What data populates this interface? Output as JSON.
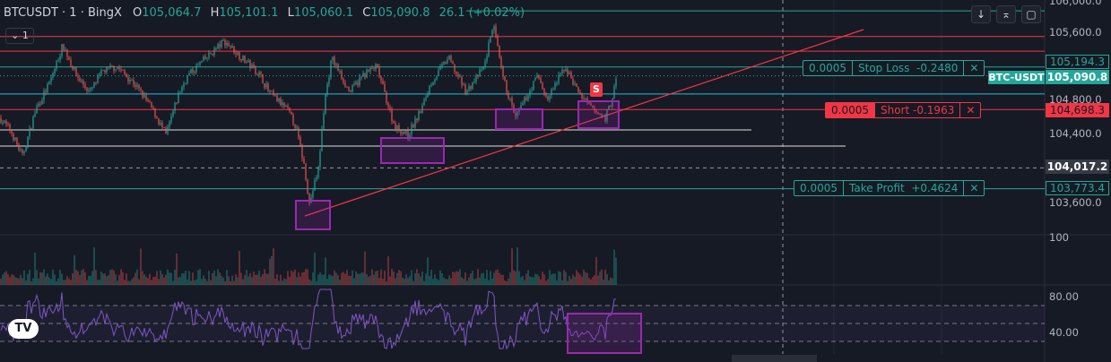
{
  "header": {
    "symbol": "BTCUSDT · 1 · BingX",
    "o_label": "O",
    "o": "105,064.7",
    "h_label": "H",
    "h": "105,101.1",
    "l_label": "L",
    "l": "105,060.1",
    "c_label": "C",
    "c": "105,090.8",
    "change": "26.1 (+0.02%)",
    "interval_badge": "⌄ 1"
  },
  "toolbar": {
    "down": "↓",
    "collapse": "⌅",
    "fullscreen": "▢"
  },
  "orders": {
    "stop_loss": {
      "qty": "0.0005",
      "label": "Stop Loss  -0.2480",
      "close": "✕",
      "price": "105,194.3"
    },
    "short": {
      "qty": "0.0005",
      "label": "Short -0.1963",
      "close": "✕",
      "price": "104,698.3"
    },
    "take_profit": {
      "qty": "0.0005",
      "label": "Take Profit  +0.4624",
      "close": "✕",
      "price": "103,773.4"
    }
  },
  "price_axis": {
    "ticks": [
      "106,000.0",
      "105,600.0",
      "104,800.0",
      "104,400.0",
      "103,600.0"
    ],
    "current_symbol": "BTC-USDT",
    "current_price": "105,090.8",
    "crosshair_price": "104,017.2"
  },
  "volume_axis": {
    "tick": "100"
  },
  "rsi_axis": {
    "ticks": [
      "80.00",
      "40.00"
    ]
  },
  "marker": {
    "label": "S",
    "color": "#f23645"
  },
  "logo": "TV",
  "colors": {
    "up": "#26a69a",
    "down": "#ef5350",
    "rsi": "#7e57c2",
    "box": "#9c27b0"
  },
  "chart_data": {
    "type": "candlestick",
    "title": "BTCUSDT · 1 · BingX",
    "ylim": [
      103400,
      106000
    ],
    "price_path": [
      [
        0,
        104600
      ],
      [
        12,
        104450
      ],
      [
        25,
        104150
      ],
      [
        40,
        104700
      ],
      [
        55,
        105000
      ],
      [
        70,
        105450
      ],
      [
        85,
        105100
      ],
      [
        100,
        104900
      ],
      [
        115,
        105150
      ],
      [
        130,
        105200
      ],
      [
        150,
        105000
      ],
      [
        170,
        104700
      ],
      [
        185,
        104400
      ],
      [
        200,
        104900
      ],
      [
        210,
        105100
      ],
      [
        230,
        105300
      ],
      [
        250,
        105500
      ],
      [
        270,
        105300
      ],
      [
        290,
        105100
      ],
      [
        300,
        104900
      ],
      [
        320,
        104700
      ],
      [
        330,
        104500
      ],
      [
        340,
        104000
      ],
      [
        345,
        103600
      ],
      [
        355,
        104000
      ],
      [
        362,
        104800
      ],
      [
        370,
        105300
      ],
      [
        390,
        104900
      ],
      [
        405,
        105100
      ],
      [
        420,
        105200
      ],
      [
        440,
        104500
      ],
      [
        455,
        104400
      ],
      [
        470,
        104700
      ],
      [
        480,
        105000
      ],
      [
        500,
        105300
      ],
      [
        520,
        104900
      ],
      [
        540,
        105200
      ],
      [
        550,
        105700
      ],
      [
        560,
        105100
      ],
      [
        575,
        104600
      ],
      [
        590,
        104900
      ],
      [
        600,
        105100
      ],
      [
        610,
        104800
      ],
      [
        630,
        105200
      ],
      [
        645,
        104900
      ],
      [
        660,
        104700
      ],
      [
        675,
        104600
      ],
      [
        682,
        104800
      ],
      [
        688,
        105100
      ]
    ],
    "levels": {
      "stop_loss": 105194.3,
      "current": 105090.8,
      "short_entry": 104698.3,
      "take_profit": 103773.4,
      "crosshair": 104017.2,
      "support_1": 104500,
      "support_2": 104300,
      "resistance_1": 105550,
      "resistance_2": 105400,
      "cyan_level": 104880,
      "top_level": 105850
    },
    "rsi_levels": [
      70,
      50,
      30
    ],
    "rsi_ylim": [
      20,
      95
    ]
  }
}
